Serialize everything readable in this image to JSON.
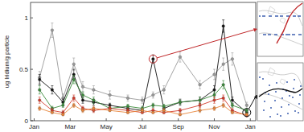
{
  "chart_data": {
    "type": "line",
    "y_label": "ug Iridium/g particle",
    "x": [
      0.3,
      1.0,
      1.6,
      2.2,
      2.7,
      3.3,
      4.2,
      5.2,
      6.0,
      6.6,
      7.2,
      8.1,
      9.2,
      10.0,
      10.5,
      11.0,
      11.8
    ],
    "xlim": [
      -0.2,
      12.3
    ],
    "xticks": [
      {
        "value": 0,
        "label": "Jan"
      },
      {
        "value": 2,
        "label": "Mar"
      },
      {
        "value": 4,
        "label": "May"
      },
      {
        "value": 6,
        "label": "Jul"
      },
      {
        "value": 8,
        "label": "Sep"
      },
      {
        "value": 10,
        "label": "Nov"
      },
      {
        "value": 12,
        "label": "Jan"
      }
    ],
    "ylim": [
      0,
      1.15
    ],
    "yticks": [
      0,
      0.5,
      1
    ],
    "marker": "circle",
    "series": [
      {
        "color": "#9a9a9a",
        "values": [
          0.42,
          0.88,
          0.22,
          0.55,
          0.33,
          0.3,
          0.25,
          0.22,
          0.2,
          0.25,
          0.3,
          0.62,
          0.35,
          0.45,
          0.55,
          0.6,
          0.15
        ],
        "errors": [
          0.06,
          0.07,
          0.04,
          0.06,
          0.05,
          0.04,
          0.04,
          0.03,
          0.03,
          0.03,
          0.04,
          0.05,
          0.04,
          0.05,
          0.06,
          0.06,
          0.03
        ]
      },
      {
        "color": "#111111",
        "values": [
          0.4,
          0.3,
          0.18,
          0.45,
          0.2,
          0.18,
          0.15,
          0.12,
          0.1,
          0.6,
          0.12,
          0.18,
          0.2,
          0.3,
          0.92,
          0.2,
          0.08
        ],
        "errors": [
          0.05,
          0.04,
          0.03,
          0.05,
          0.03,
          0.03,
          0.02,
          0.02,
          0.02,
          0.04,
          0.02,
          0.03,
          0.03,
          0.04,
          0.06,
          0.03,
          0.02
        ]
      },
      {
        "color": "#3a8a3a",
        "values": [
          0.3,
          0.12,
          0.15,
          0.4,
          0.25,
          0.2,
          0.12,
          0.14,
          0.12,
          0.15,
          0.14,
          0.18,
          0.2,
          0.25,
          0.35,
          0.15,
          0.1
        ],
        "errors": [
          0.04,
          0.02,
          0.02,
          0.04,
          0.03,
          0.03,
          0.02,
          0.02,
          0.02,
          0.02,
          0.02,
          0.02,
          0.03,
          0.03,
          0.04,
          0.02,
          0.02
        ]
      },
      {
        "color": "#d43a2a",
        "values": [
          0.2,
          0.1,
          0.08,
          0.22,
          0.12,
          0.1,
          0.12,
          0.1,
          0.08,
          0.1,
          0.08,
          0.1,
          0.15,
          0.2,
          0.22,
          0.1,
          0.05
        ],
        "errors": [
          0.03,
          0.02,
          0.02,
          0.03,
          0.02,
          0.02,
          0.02,
          0.02,
          0.01,
          0.02,
          0.01,
          0.02,
          0.02,
          0.03,
          0.03,
          0.02,
          0.01
        ]
      },
      {
        "color": "#e8843a",
        "values": [
          0.12,
          0.08,
          0.06,
          0.15,
          0.1,
          0.12,
          0.1,
          0.08,
          0.1,
          0.08,
          0.1,
          0.06,
          0.1,
          0.12,
          0.15,
          0.08,
          0.06
        ],
        "errors": [
          0.02,
          0.01,
          0.01,
          0.02,
          0.02,
          0.02,
          0.01,
          0.01,
          0.02,
          0.01,
          0.02,
          0.01,
          0.02,
          0.02,
          0.02,
          0.01,
          0.01
        ]
      }
    ]
  }
}
